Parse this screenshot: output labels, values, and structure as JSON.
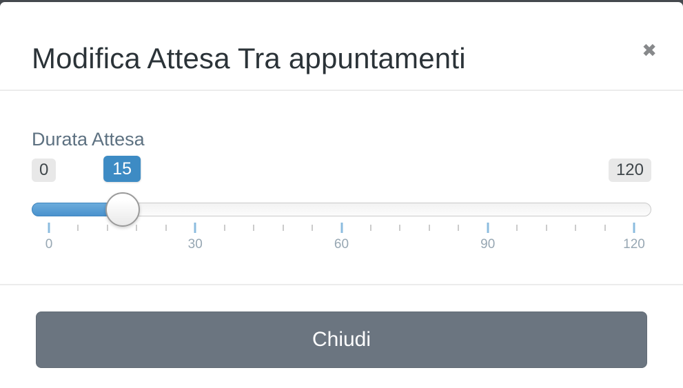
{
  "modal": {
    "title": "Modifica Attesa Tra appuntamenti",
    "close_icon_glyph": "✖",
    "body": {
      "slider_label": "Durata Attesa",
      "slider": {
        "min": 0,
        "max": 120,
        "value": 15,
        "min_badge": "0",
        "value_badge": "15",
        "max_badge": "120",
        "tick_step": 6,
        "major_tick_step": 30,
        "tick_labels": [
          "0",
          "30",
          "60",
          "90",
          "120"
        ]
      }
    },
    "footer": {
      "close_button_label": "Chiudi"
    }
  },
  "colors": {
    "backdrop": "#45494e",
    "divider": "#ececec",
    "title-text": "#2b3338",
    "close-icon": "#87898b",
    "label-text": "#5d7181",
    "badge-bg": "#e8e8e8",
    "badge-text": "#3f464a",
    "accent-blue": "#3d8bc4",
    "fill-top": "#6cacdc",
    "fill-bottom": "#4a92cd",
    "fill-border": "#3f85be",
    "major-tick": "#8cbcdf",
    "minor-tick": "#cbcbcb",
    "tick-label": "#97a7b3",
    "button-bg": "#6b7580",
    "button-border": "#616b75"
  }
}
